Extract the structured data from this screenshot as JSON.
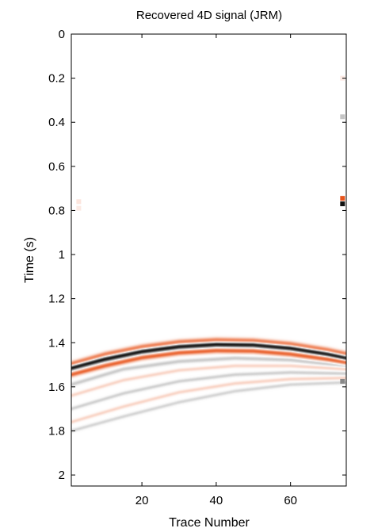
{
  "chart_data": {
    "type": "heatmap",
    "title": "Recovered 4D signal (JRM)",
    "xlabel": "Trace Number",
    "ylabel": "Time (s)",
    "xlim": [
      1,
      75
    ],
    "ylim": [
      2.05,
      0
    ],
    "y_reversed": true,
    "xticks": [
      20,
      40,
      60
    ],
    "yticks": [
      0,
      0.2,
      0.4,
      0.6,
      0.8,
      1,
      1.2,
      1.4,
      1.6,
      1.8,
      2
    ],
    "grid": false,
    "legend": "none",
    "colormap": {
      "negative": "#e8541b",
      "zero": "#ffffff",
      "positive": "#111111"
    },
    "events": [
      {
        "name": "main-black",
        "amplitude": 1.0,
        "width": 0.011,
        "points": [
          [
            1,
            1.515
          ],
          [
            10,
            1.475
          ],
          [
            20,
            1.44
          ],
          [
            30,
            1.418
          ],
          [
            40,
            1.408
          ],
          [
            50,
            1.41
          ],
          [
            60,
            1.425
          ],
          [
            70,
            1.452
          ],
          [
            75,
            1.47
          ]
        ]
      },
      {
        "name": "lobe-above",
        "amplitude": -0.75,
        "width": 0.011,
        "points": [
          [
            1,
            1.495
          ],
          [
            10,
            1.452
          ],
          [
            20,
            1.418
          ],
          [
            30,
            1.396
          ],
          [
            40,
            1.387
          ],
          [
            50,
            1.39
          ],
          [
            60,
            1.405
          ],
          [
            70,
            1.432
          ],
          [
            75,
            1.45
          ]
        ]
      },
      {
        "name": "lobe-below",
        "amplitude": -0.9,
        "width": 0.011,
        "points": [
          [
            1,
            1.545
          ],
          [
            10,
            1.505
          ],
          [
            20,
            1.468
          ],
          [
            30,
            1.446
          ],
          [
            40,
            1.436
          ],
          [
            50,
            1.438
          ],
          [
            60,
            1.452
          ],
          [
            70,
            1.475
          ],
          [
            75,
            1.49
          ]
        ]
      },
      {
        "name": "faint-1",
        "amplitude": 0.22,
        "width": 0.009,
        "points": [
          [
            1,
            1.59
          ],
          [
            15,
            1.52
          ],
          [
            30,
            1.485
          ],
          [
            45,
            1.47
          ],
          [
            60,
            1.478
          ],
          [
            75,
            1.505
          ]
        ]
      },
      {
        "name": "faint-2",
        "amplitude": -0.25,
        "width": 0.008,
        "points": [
          [
            1,
            1.64
          ],
          [
            15,
            1.57
          ],
          [
            30,
            1.525
          ],
          [
            45,
            1.505
          ],
          [
            60,
            1.505
          ],
          [
            75,
            1.52
          ]
        ]
      },
      {
        "name": "faint-3",
        "amplitude": 0.2,
        "width": 0.008,
        "points": [
          [
            1,
            1.7
          ],
          [
            15,
            1.63
          ],
          [
            30,
            1.575
          ],
          [
            45,
            1.545
          ],
          [
            60,
            1.535
          ],
          [
            75,
            1.54
          ]
        ]
      },
      {
        "name": "faint-4",
        "amplitude": -0.25,
        "width": 0.008,
        "points": [
          [
            1,
            1.76
          ],
          [
            15,
            1.69
          ],
          [
            30,
            1.625
          ],
          [
            45,
            1.585
          ],
          [
            60,
            1.565
          ],
          [
            75,
            1.56
          ]
        ]
      },
      {
        "name": "faint-5",
        "amplitude": 0.18,
        "width": 0.008,
        "points": [
          [
            1,
            1.8
          ],
          [
            15,
            1.735
          ],
          [
            30,
            1.67
          ],
          [
            45,
            1.62
          ],
          [
            60,
            1.59
          ],
          [
            75,
            1.58
          ]
        ]
      }
    ],
    "artifacts": [
      {
        "trace": 74,
        "time": 0.745,
        "amplitude": -1.0
      },
      {
        "trace": 74,
        "time": 0.77,
        "amplitude": 1.0
      },
      {
        "trace": 74,
        "time": 0.375,
        "amplitude": 0.25
      },
      {
        "trace": 74,
        "time": 0.2,
        "amplitude": -0.12
      },
      {
        "trace": 3,
        "time": 0.76,
        "amplitude": -0.15
      },
      {
        "trace": 3,
        "time": 0.79,
        "amplitude": -0.12
      },
      {
        "trace": 74,
        "time": 1.575,
        "amplitude": 0.5
      }
    ]
  }
}
